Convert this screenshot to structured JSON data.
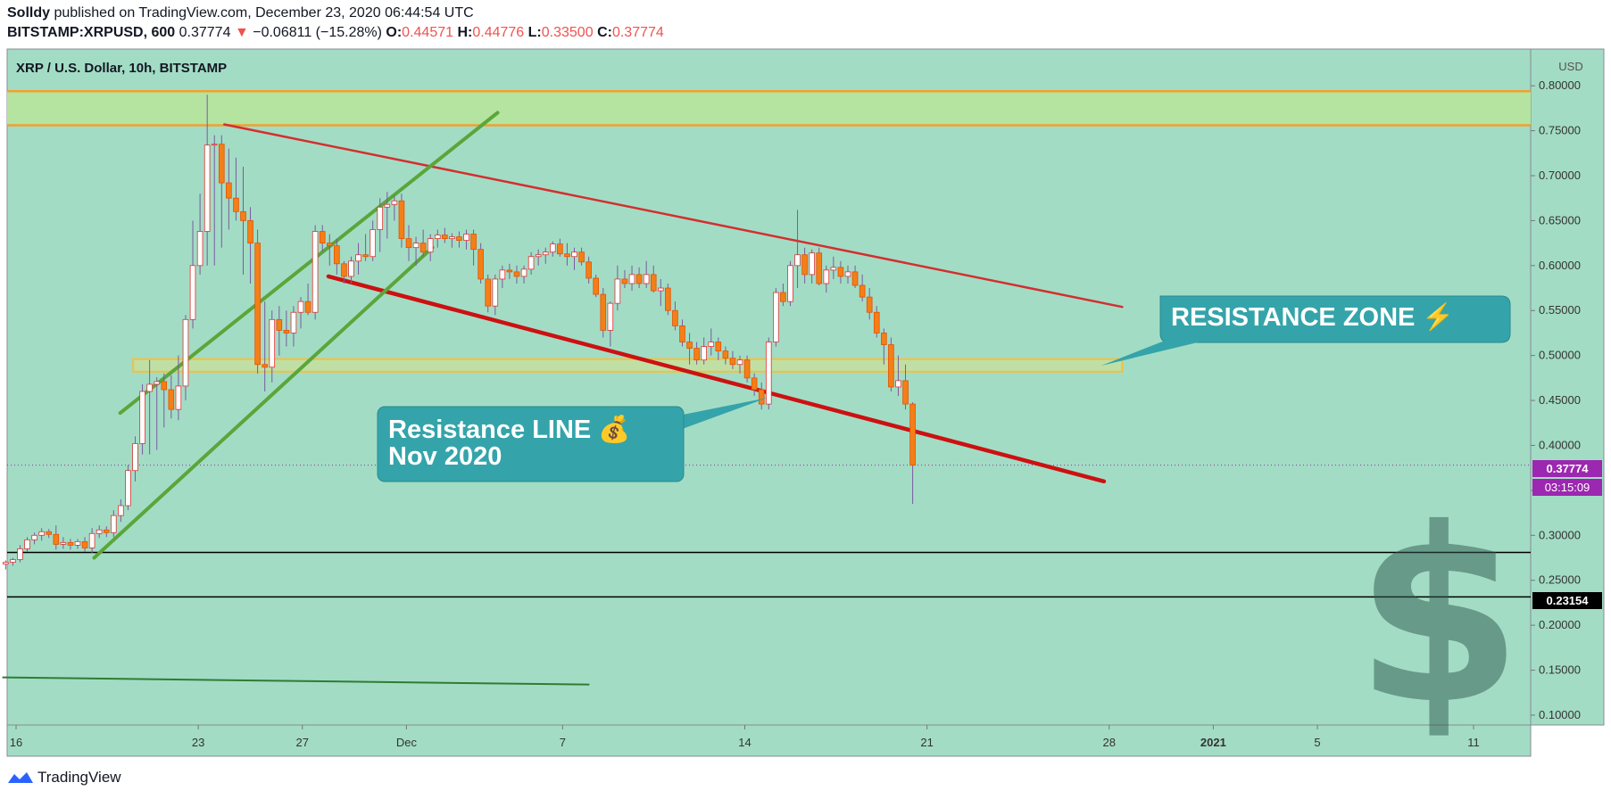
{
  "header": {
    "author": "Solldy",
    "published_text": "published on TradingView.com, December 23, 2020 06:44:54 UTC",
    "symbol": "BITSTAMP:XRPUSD, 600",
    "last_price": "0.37774",
    "arrow": "▼",
    "change": "−0.06811 (−15.28%)",
    "o_label": "O:",
    "o_value": "0.44571",
    "h_label": "H:",
    "h_value": "0.44776",
    "l_label": "L:",
    "l_value": "0.33500",
    "c_label": "C:",
    "c_value": "0.37774"
  },
  "chart_title": "XRP / U.S. Dollar, 10h, BITSTAMP",
  "currency": "USD",
  "footer_brand": "TradingView",
  "price_tag": "0.37774",
  "timer_tag": "03:15:09",
  "level_tag": "0.23154",
  "callout_resistance_zone": "RESISTANCE ZONE ⚡",
  "callout_line_1": "Resistance LINE 💰",
  "callout_line_2": "Nov 2020",
  "chart_data": {
    "type": "candlestick",
    "title": "XRP / U.S. Dollar, 10h, BITSTAMP",
    "ylabel": "USD",
    "ylim": [
      0.095,
      0.82
    ],
    "y_ticks": [
      0.1,
      0.15,
      0.2,
      0.25,
      0.3,
      0.35,
      0.4,
      0.45,
      0.5,
      0.55,
      0.6,
      0.65,
      0.7,
      0.75,
      0.8
    ],
    "y_tick_labels": [
      "0.10000",
      "0.15000",
      "0.20000",
      "0.25000",
      "0.30000",
      "0.35000",
      "0.40000",
      "0.45000",
      "0.50000",
      "0.55000",
      "0.60000",
      "0.65000",
      "0.70000",
      "0.75000",
      "0.80000"
    ],
    "x_day_range": [
      15.5,
      43.5
    ],
    "x_ticks": [
      {
        "day": 16,
        "label": "16"
      },
      {
        "day": 23,
        "label": "23"
      },
      {
        "day": 27,
        "label": "27"
      },
      {
        "day": 31,
        "label": "Dec"
      },
      {
        "day": 37,
        "label": "7"
      },
      {
        "day": 44,
        "label": "14"
      },
      {
        "day": 51,
        "label": "21"
      },
      {
        "day": 58,
        "label": "28"
      },
      {
        "day": 62,
        "label": "2021"
      },
      {
        "day": 66,
        "label": "5"
      },
      {
        "day": 72,
        "label": "11"
      }
    ],
    "candles": [
      {
        "o": 0.268,
        "h": 0.272,
        "l": 0.262,
        "c": 0.27
      },
      {
        "o": 0.27,
        "h": 0.275,
        "l": 0.266,
        "c": 0.273
      },
      {
        "o": 0.273,
        "h": 0.289,
        "l": 0.27,
        "c": 0.285
      },
      {
        "o": 0.285,
        "h": 0.298,
        "l": 0.282,
        "c": 0.295
      },
      {
        "o": 0.295,
        "h": 0.303,
        "l": 0.29,
        "c": 0.3
      },
      {
        "o": 0.3,
        "h": 0.308,
        "l": 0.294,
        "c": 0.304
      },
      {
        "o": 0.304,
        "h": 0.307,
        "l": 0.297,
        "c": 0.301
      },
      {
        "o": 0.301,
        "h": 0.311,
        "l": 0.284,
        "c": 0.29
      },
      {
        "o": 0.29,
        "h": 0.298,
        "l": 0.285,
        "c": 0.292
      },
      {
        "o": 0.292,
        "h": 0.296,
        "l": 0.284,
        "c": 0.289
      },
      {
        "o": 0.289,
        "h": 0.296,
        "l": 0.285,
        "c": 0.293
      },
      {
        "o": 0.293,
        "h": 0.298,
        "l": 0.282,
        "c": 0.286
      },
      {
        "o": 0.286,
        "h": 0.308,
        "l": 0.28,
        "c": 0.302
      },
      {
        "o": 0.302,
        "h": 0.311,
        "l": 0.297,
        "c": 0.306
      },
      {
        "o": 0.306,
        "h": 0.31,
        "l": 0.298,
        "c": 0.303
      },
      {
        "o": 0.303,
        "h": 0.328,
        "l": 0.298,
        "c": 0.322
      },
      {
        "o": 0.322,
        "h": 0.34,
        "l": 0.315,
        "c": 0.333
      },
      {
        "o": 0.333,
        "h": 0.378,
        "l": 0.328,
        "c": 0.372
      },
      {
        "o": 0.372,
        "h": 0.41,
        "l": 0.36,
        "c": 0.402
      },
      {
        "o": 0.402,
        "h": 0.468,
        "l": 0.39,
        "c": 0.46
      },
      {
        "o": 0.46,
        "h": 0.495,
        "l": 0.39,
        "c": 0.468
      },
      {
        "o": 0.468,
        "h": 0.476,
        "l": 0.395,
        "c": 0.471
      },
      {
        "o": 0.471,
        "h": 0.48,
        "l": 0.42,
        "c": 0.462
      },
      {
        "o": 0.462,
        "h": 0.478,
        "l": 0.43,
        "c": 0.44
      },
      {
        "o": 0.44,
        "h": 0.5,
        "l": 0.428,
        "c": 0.466
      },
      {
        "o": 0.466,
        "h": 0.545,
        "l": 0.45,
        "c": 0.54
      },
      {
        "o": 0.54,
        "h": 0.65,
        "l": 0.53,
        "c": 0.6
      },
      {
        "o": 0.6,
        "h": 0.68,
        "l": 0.59,
        "c": 0.638
      },
      {
        "o": 0.638,
        "h": 0.79,
        "l": 0.6,
        "c": 0.734
      },
      {
        "o": 0.734,
        "h": 0.745,
        "l": 0.6,
        "c": 0.735
      },
      {
        "o": 0.735,
        "h": 0.745,
        "l": 0.62,
        "c": 0.692
      },
      {
        "o": 0.692,
        "h": 0.73,
        "l": 0.64,
        "c": 0.675
      },
      {
        "o": 0.675,
        "h": 0.72,
        "l": 0.65,
        "c": 0.66
      },
      {
        "o": 0.66,
        "h": 0.71,
        "l": 0.59,
        "c": 0.65
      },
      {
        "o": 0.65,
        "h": 0.665,
        "l": 0.58,
        "c": 0.625
      },
      {
        "o": 0.625,
        "h": 0.64,
        "l": 0.48,
        "c": 0.49
      },
      {
        "o": 0.49,
        "h": 0.56,
        "l": 0.46,
        "c": 0.487
      },
      {
        "o": 0.487,
        "h": 0.55,
        "l": 0.47,
        "c": 0.54
      },
      {
        "o": 0.54,
        "h": 0.555,
        "l": 0.5,
        "c": 0.528
      },
      {
        "o": 0.528,
        "h": 0.55,
        "l": 0.51,
        "c": 0.525
      },
      {
        "o": 0.525,
        "h": 0.555,
        "l": 0.51,
        "c": 0.548
      },
      {
        "o": 0.548,
        "h": 0.565,
        "l": 0.53,
        "c": 0.56
      },
      {
        "o": 0.56,
        "h": 0.58,
        "l": 0.545,
        "c": 0.548
      },
      {
        "o": 0.548,
        "h": 0.645,
        "l": 0.54,
        "c": 0.638
      },
      {
        "o": 0.638,
        "h": 0.645,
        "l": 0.615,
        "c": 0.625
      },
      {
        "o": 0.625,
        "h": 0.635,
        "l": 0.6,
        "c": 0.622
      },
      {
        "o": 0.622,
        "h": 0.63,
        "l": 0.59,
        "c": 0.602
      },
      {
        "o": 0.602,
        "h": 0.605,
        "l": 0.58,
        "c": 0.588
      },
      {
        "o": 0.588,
        "h": 0.61,
        "l": 0.58,
        "c": 0.605
      },
      {
        "o": 0.605,
        "h": 0.625,
        "l": 0.59,
        "c": 0.612
      },
      {
        "o": 0.612,
        "h": 0.635,
        "l": 0.605,
        "c": 0.61
      },
      {
        "o": 0.61,
        "h": 0.65,
        "l": 0.605,
        "c": 0.64
      },
      {
        "o": 0.64,
        "h": 0.675,
        "l": 0.615,
        "c": 0.665
      },
      {
        "o": 0.665,
        "h": 0.682,
        "l": 0.63,
        "c": 0.668
      },
      {
        "o": 0.668,
        "h": 0.678,
        "l": 0.65,
        "c": 0.672
      },
      {
        "o": 0.672,
        "h": 0.68,
        "l": 0.62,
        "c": 0.63
      },
      {
        "o": 0.63,
        "h": 0.645,
        "l": 0.605,
        "c": 0.62
      },
      {
        "o": 0.62,
        "h": 0.632,
        "l": 0.6,
        "c": 0.625
      },
      {
        "o": 0.625,
        "h": 0.64,
        "l": 0.61,
        "c": 0.615
      },
      {
        "o": 0.615,
        "h": 0.635,
        "l": 0.605,
        "c": 0.63
      },
      {
        "o": 0.63,
        "h": 0.64,
        "l": 0.62,
        "c": 0.634
      },
      {
        "o": 0.634,
        "h": 0.642,
        "l": 0.625,
        "c": 0.63
      },
      {
        "o": 0.63,
        "h": 0.636,
        "l": 0.62,
        "c": 0.632
      },
      {
        "o": 0.632,
        "h": 0.638,
        "l": 0.62,
        "c": 0.628
      },
      {
        "o": 0.628,
        "h": 0.64,
        "l": 0.618,
        "c": 0.635
      },
      {
        "o": 0.635,
        "h": 0.64,
        "l": 0.6,
        "c": 0.618
      },
      {
        "o": 0.618,
        "h": 0.625,
        "l": 0.58,
        "c": 0.585
      },
      {
        "o": 0.585,
        "h": 0.59,
        "l": 0.548,
        "c": 0.555
      },
      {
        "o": 0.555,
        "h": 0.59,
        "l": 0.545,
        "c": 0.585
      },
      {
        "o": 0.585,
        "h": 0.6,
        "l": 0.575,
        "c": 0.595
      },
      {
        "o": 0.595,
        "h": 0.602,
        "l": 0.585,
        "c": 0.593
      },
      {
        "o": 0.593,
        "h": 0.6,
        "l": 0.58,
        "c": 0.588
      },
      {
        "o": 0.588,
        "h": 0.6,
        "l": 0.58,
        "c": 0.596
      },
      {
        "o": 0.596,
        "h": 0.615,
        "l": 0.59,
        "c": 0.61
      },
      {
        "o": 0.61,
        "h": 0.618,
        "l": 0.6,
        "c": 0.612
      },
      {
        "o": 0.612,
        "h": 0.62,
        "l": 0.602,
        "c": 0.615
      },
      {
        "o": 0.615,
        "h": 0.627,
        "l": 0.61,
        "c": 0.624
      },
      {
        "o": 0.624,
        "h": 0.63,
        "l": 0.61,
        "c": 0.613
      },
      {
        "o": 0.613,
        "h": 0.625,
        "l": 0.6,
        "c": 0.61
      },
      {
        "o": 0.61,
        "h": 0.62,
        "l": 0.595,
        "c": 0.615
      },
      {
        "o": 0.615,
        "h": 0.62,
        "l": 0.6,
        "c": 0.604
      },
      {
        "o": 0.604,
        "h": 0.61,
        "l": 0.58,
        "c": 0.586
      },
      {
        "o": 0.586,
        "h": 0.59,
        "l": 0.565,
        "c": 0.568
      },
      {
        "o": 0.568,
        "h": 0.575,
        "l": 0.52,
        "c": 0.528
      },
      {
        "o": 0.528,
        "h": 0.56,
        "l": 0.51,
        "c": 0.558
      },
      {
        "o": 0.558,
        "h": 0.6,
        "l": 0.55,
        "c": 0.585
      },
      {
        "o": 0.585,
        "h": 0.595,
        "l": 0.575,
        "c": 0.58
      },
      {
        "o": 0.58,
        "h": 0.6,
        "l": 0.572,
        "c": 0.59
      },
      {
        "o": 0.59,
        "h": 0.598,
        "l": 0.575,
        "c": 0.58
      },
      {
        "o": 0.58,
        "h": 0.605,
        "l": 0.575,
        "c": 0.59
      },
      {
        "o": 0.59,
        "h": 0.6,
        "l": 0.57,
        "c": 0.572
      },
      {
        "o": 0.572,
        "h": 0.585,
        "l": 0.555,
        "c": 0.575
      },
      {
        "o": 0.575,
        "h": 0.58,
        "l": 0.545,
        "c": 0.55
      },
      {
        "o": 0.55,
        "h": 0.56,
        "l": 0.528,
        "c": 0.533
      },
      {
        "o": 0.533,
        "h": 0.54,
        "l": 0.51,
        "c": 0.515
      },
      {
        "o": 0.515,
        "h": 0.525,
        "l": 0.49,
        "c": 0.508
      },
      {
        "o": 0.508,
        "h": 0.515,
        "l": 0.49,
        "c": 0.495
      },
      {
        "o": 0.495,
        "h": 0.52,
        "l": 0.49,
        "c": 0.51
      },
      {
        "o": 0.51,
        "h": 0.53,
        "l": 0.5,
        "c": 0.515
      },
      {
        "o": 0.515,
        "h": 0.52,
        "l": 0.495,
        "c": 0.505
      },
      {
        "o": 0.505,
        "h": 0.51,
        "l": 0.49,
        "c": 0.497
      },
      {
        "o": 0.497,
        "h": 0.505,
        "l": 0.485,
        "c": 0.49
      },
      {
        "o": 0.49,
        "h": 0.5,
        "l": 0.48,
        "c": 0.495
      },
      {
        "o": 0.495,
        "h": 0.5,
        "l": 0.47,
        "c": 0.475
      },
      {
        "o": 0.475,
        "h": 0.48,
        "l": 0.455,
        "c": 0.462
      },
      {
        "o": 0.462,
        "h": 0.47,
        "l": 0.44,
        "c": 0.446
      },
      {
        "o": 0.446,
        "h": 0.52,
        "l": 0.44,
        "c": 0.515
      },
      {
        "o": 0.515,
        "h": 0.575,
        "l": 0.51,
        "c": 0.57
      },
      {
        "o": 0.57,
        "h": 0.58,
        "l": 0.555,
        "c": 0.56
      },
      {
        "o": 0.56,
        "h": 0.605,
        "l": 0.555,
        "c": 0.6
      },
      {
        "o": 0.6,
        "h": 0.662,
        "l": 0.575,
        "c": 0.612
      },
      {
        "o": 0.612,
        "h": 0.62,
        "l": 0.58,
        "c": 0.59
      },
      {
        "o": 0.59,
        "h": 0.618,
        "l": 0.58,
        "c": 0.614
      },
      {
        "o": 0.614,
        "h": 0.62,
        "l": 0.578,
        "c": 0.58
      },
      {
        "o": 0.58,
        "h": 0.6,
        "l": 0.57,
        "c": 0.595
      },
      {
        "o": 0.595,
        "h": 0.61,
        "l": 0.585,
        "c": 0.598
      },
      {
        "o": 0.598,
        "h": 0.605,
        "l": 0.58,
        "c": 0.588
      },
      {
        "o": 0.588,
        "h": 0.6,
        "l": 0.58,
        "c": 0.593
      },
      {
        "o": 0.593,
        "h": 0.6,
        "l": 0.575,
        "c": 0.578
      },
      {
        "o": 0.578,
        "h": 0.59,
        "l": 0.56,
        "c": 0.565
      },
      {
        "o": 0.565,
        "h": 0.575,
        "l": 0.54,
        "c": 0.548
      },
      {
        "o": 0.548,
        "h": 0.555,
        "l": 0.52,
        "c": 0.525
      },
      {
        "o": 0.525,
        "h": 0.53,
        "l": 0.49,
        "c": 0.512
      },
      {
        "o": 0.512,
        "h": 0.52,
        "l": 0.46,
        "c": 0.465
      },
      {
        "o": 0.465,
        "h": 0.5,
        "l": 0.455,
        "c": 0.472
      },
      {
        "o": 0.472,
        "h": 0.49,
        "l": 0.44,
        "c": 0.446
      },
      {
        "o": 0.446,
        "h": 0.448,
        "l": 0.335,
        "c": 0.378
      }
    ],
    "horizontal_levels": [
      0.281,
      0.2315
    ],
    "resistance_zone_top": [
      0.794,
      0.756
    ],
    "resistance_zone_mid": [
      0.496,
      0.482
    ],
    "trendlines": [
      {
        "name": "upper-red-trendline",
        "from": [
          24.0,
          0.757
        ],
        "to": [
          58.5,
          0.554
        ]
      },
      {
        "name": "lower-red-trendline",
        "from": [
          28.0,
          0.588
        ],
        "to": [
          57.8,
          0.36
        ]
      },
      {
        "name": "channel-lower-green-line",
        "from": [
          19.0,
          0.275
        ],
        "to": [
          32.0,
          0.62
        ]
      },
      {
        "name": "channel-upper-green-line",
        "from": [
          20.0,
          0.436
        ],
        "to": [
          34.5,
          0.77
        ]
      },
      {
        "name": "bottom-green-line",
        "from": [
          15.5,
          0.142
        ],
        "to": [
          38.0,
          0.134
        ]
      }
    ]
  }
}
